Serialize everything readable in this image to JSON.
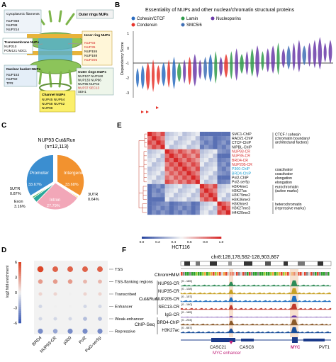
{
  "panel_letters": [
    "A",
    "B",
    "C",
    "D",
    "E",
    "F"
  ],
  "panelA": {
    "boxes": [
      {
        "title": "Cytoplasmic filaments",
        "items": [
          "NUP358",
          "NUP88",
          "NUP214"
        ]
      },
      {
        "title": "Outer rings NUPs",
        "items": []
      },
      {
        "title": "Transmembrane NUPs",
        "items": [
          "NUP210",
          "POM121 NDC1"
        ]
      },
      {
        "title": "Inner ring NUPs",
        "items": [
          "NUP93",
          "NUP35",
          "NUP155",
          "NUP188",
          "NUP205"
        ]
      },
      {
        "title": "Nuclear basket NUPs",
        "items": [
          "NUP153",
          "NUP50",
          "TPR"
        ]
      },
      {
        "title": "Outer rings NUPs",
        "items": [
          "NUP107 NUP160",
          "NUP133 NUP96",
          "NUP85 NUP43",
          "NUP37 SEC13",
          "SEH1"
        ]
      },
      {
        "title": "Channel NUPs",
        "items": [
          "NUP45 NUP54",
          "NUP58 NUP62",
          "NUP98"
        ]
      }
    ]
  },
  "panelB": {
    "title": "Essentiality of NUPs and other nuclear/chromatin structural proteins",
    "ylabel": "Dependency Score",
    "legend": [
      "Cohesin/CTCF",
      "Condensin",
      "Lamin",
      "SMC5/6",
      "Nucleoporins"
    ],
    "colors": {
      "cohesin": "#2a6cc0",
      "condensin": "#e6342c",
      "lamin": "#2e9a4a",
      "smc56": "#3f6fb5",
      "nup": "#6a3aa8"
    },
    "chart_data": {
      "type": "violin",
      "ylim": [
        -3,
        1
      ],
      "yticks": [
        "1",
        "0",
        "-1",
        "-2",
        "-3"
      ],
      "hline": -1
    }
  },
  "panelC": {
    "title_line1": "NUP93 Cut&Run",
    "title_line2": "(n=12,113)",
    "chart_data": {
      "type": "pie",
      "slices": [
        {
          "label": "Promoter",
          "value": 33.67,
          "color": "#3b8ed0"
        },
        {
          "label": "Intergenic",
          "value": 33.68,
          "color": "#f2922f"
        },
        {
          "label": "3UTR",
          "value": 0.64,
          "color": "#f3d23a"
        },
        {
          "label": "Intron",
          "value": 27.79,
          "color": "#f2a7b8"
        },
        {
          "label": "Exon",
          "value": 3.16,
          "color": "#2aa89a"
        },
        {
          "label": "5UTR",
          "value": 0.87,
          "color": "#4cb050"
        }
      ],
      "slice_texts": {
        "Promoter": "33.67%",
        "Intergenic": "33.68%",
        "Intron": "27.79%",
        "Exon": "3.16%",
        "5UTR": "0.87%",
        "3UTR": "0.64%"
      }
    }
  },
  "panelD": {
    "ylabel": "log2 fold enrichment",
    "colorbar_ticks": [
      "6",
      "3",
      "0",
      "-3",
      "-6"
    ],
    "chart_data": {
      "type": "dot",
      "columns": [
        "BRD4",
        "NUP93-CR",
        "p300",
        "Pol2",
        "Pol2-ser5p"
      ],
      "rows": [
        "TSS",
        "TSS-flanking regions",
        "Transcribed",
        "Enhancer",
        "Weak-enhancer",
        "Repressive"
      ],
      "values": [
        [
          6,
          5,
          5,
          5,
          5
        ],
        [
          3,
          3,
          3,
          2,
          2
        ],
        [
          1,
          1,
          0,
          1,
          1
        ],
        [
          -1,
          0,
          0,
          -1,
          -1
        ],
        [
          -1,
          -1,
          -1,
          -2,
          -2
        ],
        [
          -4,
          -3,
          -4,
          -4,
          -4
        ]
      ]
    }
  },
  "panelE": {
    "xlabel": "HCT116",
    "colorbar_ticks": [
      "0.0",
      "0.2",
      "0.4",
      "0.6",
      "0.8",
      "1.0"
    ],
    "row_labels": [
      "SMC1-ChIP",
      "RAD21-ChIP",
      "CTCF-ChIP",
      "NIPBL-ChIP",
      "NUP93-CR",
      "NUP35-CR",
      "BRD4-CR",
      "NUP205-CR",
      "P300-ChIP",
      "BRD4-ChIP",
      "Pol2-ChIP",
      "Pol2-ser5p",
      "H3K4me1",
      "H3K27ac",
      "H3K79me2",
      "H3K36me3",
      "H3K9me3",
      "H3K27me3",
      "H4K20me3"
    ],
    "row_colors": [
      "#111111",
      "#111111",
      "#111111",
      "#111111",
      "#d62b2b",
      "#d62b2b",
      "#d62b2b",
      "#d62b2b",
      "#1f9fd0",
      "#1f9fd0",
      "#111111",
      "#111111",
      "#111111",
      "#111111",
      "#111111",
      "#111111",
      "#111111",
      "#111111",
      "#111111"
    ],
    "groups": [
      {
        "label": "CTCF / cohesin",
        "sub": "(chromatin boundary/",
        "sub2": "architectural factors)"
      },
      {
        "label": "coactivator"
      },
      {
        "label": "coactivator"
      },
      {
        "label": "elongation"
      },
      {
        "label": "eurochromatin",
        "sub": "(active marks)"
      },
      {
        "label": "elongation"
      },
      {
        "label": "heterochromatin",
        "sub": "(repressive marks)"
      }
    ],
    "chart_data": {
      "type": "heatmap",
      "clusters": [
        [
          0,
          3
        ],
        [
          4,
          11
        ],
        [
          12,
          15
        ],
        [
          16,
          18
        ]
      ],
      "value_range": [
        0,
        1
      ]
    }
  },
  "panelF": {
    "coord": "chr8:128,178,582-128,903,867",
    "chromhmm": "ChromHMM",
    "group_cutrun": "Cut&Run",
    "group_chipseq": "ChIP-Seq",
    "tracks": [
      {
        "name": "NUP93-CR",
        "range": "[0 - 185]",
        "color": "#2e8b57"
      },
      {
        "name": "NUP35-CR",
        "range": "[0 - 138]",
        "color": "#c9a227"
      },
      {
        "name": "NUP205-CR",
        "range": "[0 - 157]",
        "color": "#1f6fbf"
      },
      {
        "name": "SEC13-CR",
        "range": "[0 - 160]",
        "color": "#c0392b"
      },
      {
        "name": "IgG-CR",
        "range": "[0 - 185]",
        "color": "#6a3aa8"
      },
      {
        "name": "BRD4-ChIP",
        "range": "[0 - 204]",
        "color": "#8b5a2b"
      },
      {
        "name": "H3K27ac",
        "range": "[0 - 687]",
        "color": "#1a4f9a"
      }
    ],
    "genes": [
      "CASC21",
      "CASC8",
      "MYC",
      "PVT1"
    ],
    "myc_enhancer": "MYC enhancer",
    "myc_label": "MYC"
  }
}
